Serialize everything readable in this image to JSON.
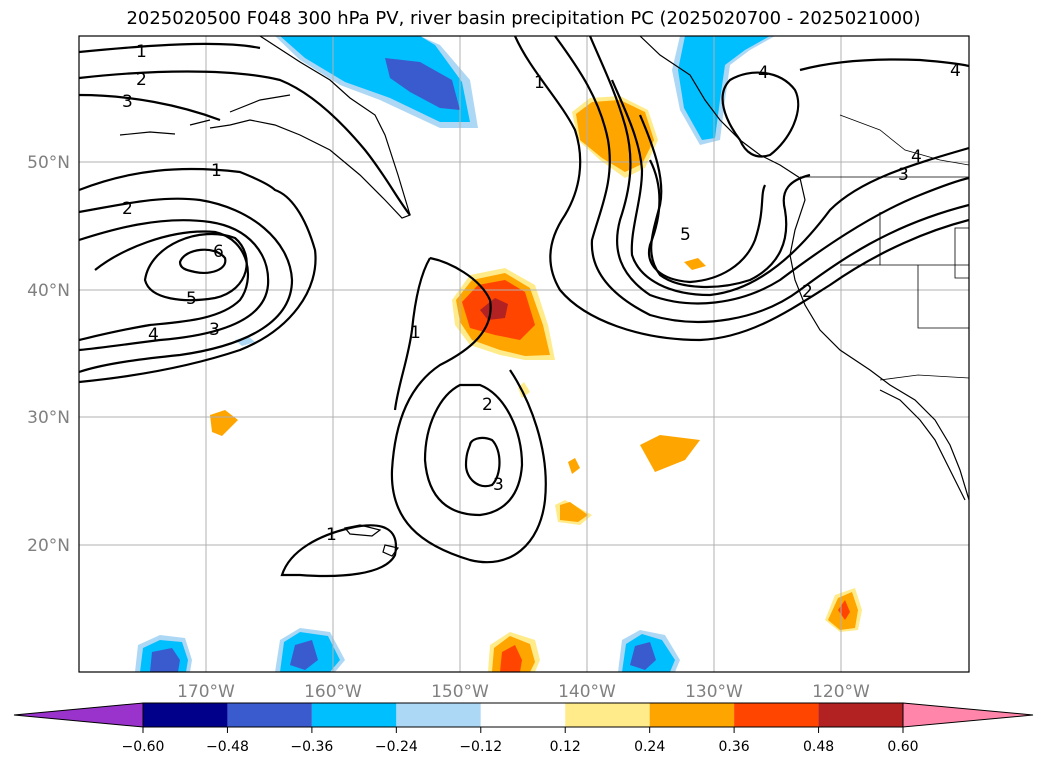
{
  "title": "2025020500 F048 300 hPa PV, river basin precipitation PC (2025020700 - 2025021000)",
  "map": {
    "lat_labels": [
      "50°N",
      "40°N",
      "30°N",
      "20°N"
    ],
    "lon_labels": [
      "170°W",
      "160°W",
      "150°W",
      "140°W",
      "130°W",
      "120°W"
    ]
  },
  "contour_labels": [
    "1",
    "2",
    "3",
    "1",
    "2",
    "6",
    "5",
    "4",
    "3",
    "1",
    "2",
    "3",
    "1",
    "4",
    "4",
    "5",
    "4",
    "3",
    "2",
    "1"
  ],
  "colorbar": {
    "ticks": [
      "−0.60",
      "−0.48",
      "−0.36",
      "−0.24",
      "−0.12",
      "0.12",
      "0.24",
      "0.36",
      "0.48",
      "0.60"
    ],
    "colors": {
      "under": "#9933cc",
      "bins": [
        "#00008b",
        "#3a5bcd",
        "#00bfff",
        "#add8f5",
        "#ffffff",
        "#ffeb8a",
        "#ffa500",
        "#ff4500",
        "#b22222"
      ],
      "over": "#ff85aa"
    }
  }
}
